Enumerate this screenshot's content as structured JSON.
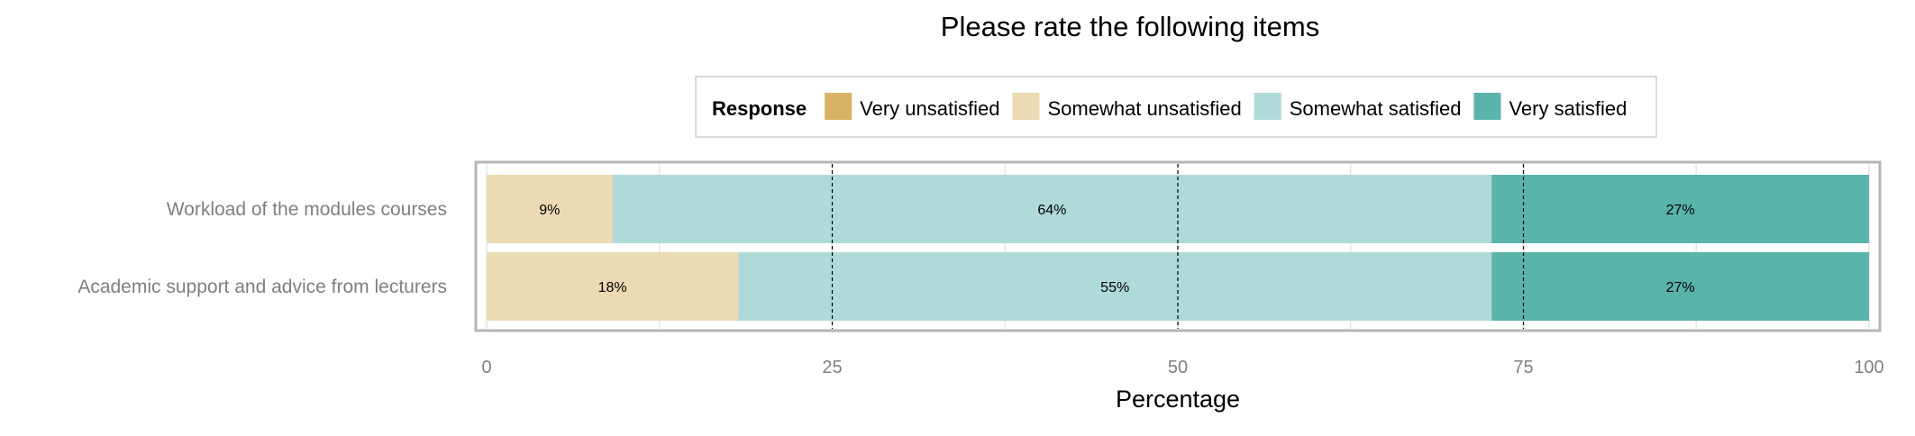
{
  "chart_data": {
    "type": "bar",
    "orientation": "horizontal",
    "stacked": true,
    "title": "Please rate the following items",
    "xlabel": "Percentage",
    "ylabel": "",
    "xlim": [
      0,
      100
    ],
    "xticks": [
      0,
      25,
      50,
      75,
      100
    ],
    "reference_lines": [
      25,
      50,
      75
    ],
    "grid": true,
    "legend": {
      "title": "Response",
      "position": "top",
      "entries": [
        "Very unsatisfied",
        "Somewhat unsatisfied",
        "Somewhat satisfied",
        "Very satisfied"
      ]
    },
    "categories": [
      "Workload of the modules courses",
      "Academic support and advice from lecturers"
    ],
    "series": [
      {
        "name": "Very unsatisfied",
        "color": "#d8b365",
        "values": [
          0,
          0
        ],
        "labels": [
          "",
          ""
        ]
      },
      {
        "name": "Somewhat unsatisfied",
        "color": "#ebdab3",
        "values": [
          9.1,
          18.2
        ],
        "labels": [
          "9%",
          "18%"
        ]
      },
      {
        "name": "Somewhat satisfied",
        "color": "#afdad7",
        "values": [
          63.6,
          54.5
        ],
        "labels": [
          "64%",
          "55%"
        ]
      },
      {
        "name": "Very satisfied",
        "color": "#5ab4ac",
        "values": [
          27.3,
          27.3
        ],
        "labels": [
          "27%",
          "27%"
        ]
      }
    ]
  }
}
